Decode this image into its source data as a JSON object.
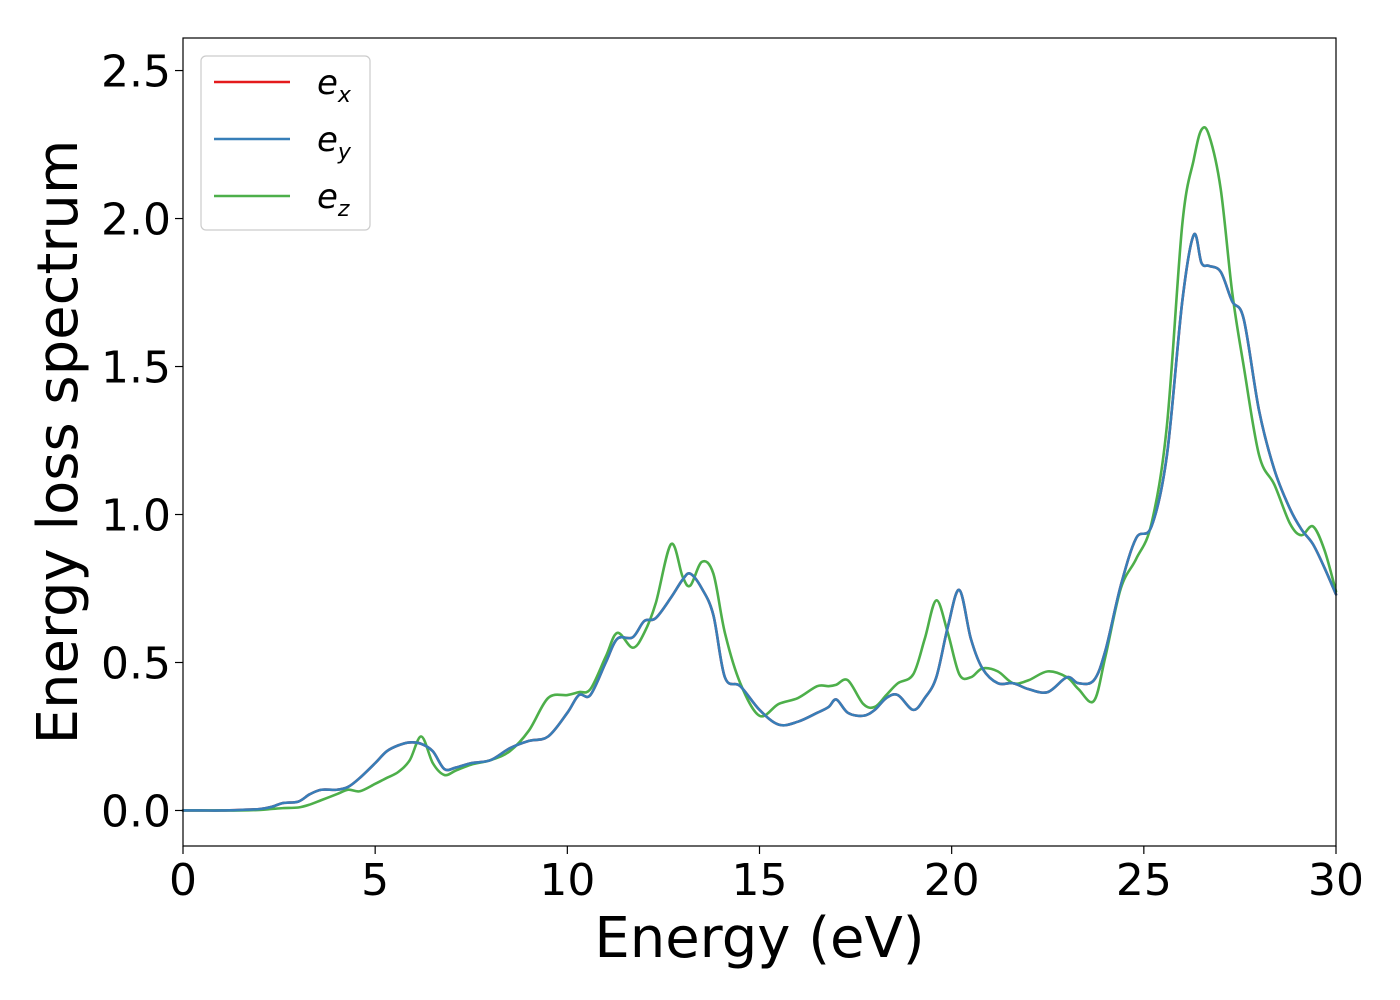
{
  "chart_data": {
    "type": "line",
    "xlabel": "Energy (eV)",
    "ylabel": "Energy loss spectrum",
    "xlim": [
      0,
      30
    ],
    "ylim": [
      -0.12,
      2.61
    ],
    "xticks": [
      0,
      5,
      10,
      15,
      20,
      25,
      30
    ],
    "yticks": [
      0.0,
      0.5,
      1.0,
      1.5,
      2.0,
      2.5
    ],
    "xtick_labels": [
      "0",
      "5",
      "10",
      "15",
      "20",
      "25",
      "30"
    ],
    "ytick_labels": [
      "0.0",
      "0.5",
      "1.0",
      "1.5",
      "2.0",
      "2.5"
    ],
    "grid": false,
    "legend_position": "top-left",
    "x": [
      0.0,
      0.5,
      1.0,
      1.5,
      2.0,
      2.3,
      2.6,
      3.0,
      3.3,
      3.6,
      4.0,
      4.3,
      4.6,
      5.0,
      5.3,
      5.6,
      5.9,
      6.2,
      6.5,
      6.8,
      7.1,
      7.5,
      8.0,
      8.5,
      9.0,
      9.5,
      10.0,
      10.3,
      10.6,
      11.0,
      11.3,
      11.7,
      12.0,
      12.3,
      12.7,
      13.0,
      13.2,
      13.5,
      13.8,
      14.1,
      14.5,
      15.0,
      15.5,
      16.0,
      16.5,
      16.8,
      17.0,
      17.3,
      17.7,
      18.0,
      18.3,
      18.6,
      19.0,
      19.3,
      19.6,
      19.9,
      20.2,
      20.5,
      20.8,
      21.2,
      21.6,
      22.0,
      22.5,
      23.0,
      23.3,
      23.7,
      24.0,
      24.4,
      24.8,
      25.2,
      25.6,
      26.0,
      26.3,
      26.5,
      26.7,
      27.0,
      27.3,
      27.6,
      28.0,
      28.4,
      28.8,
      29.1,
      29.4,
      29.7,
      30.0
    ],
    "series": [
      {
        "name": "e_x",
        "color": "#e41a1c",
        "values": [
          0.0,
          0.0,
          0.0,
          0.002,
          0.005,
          0.012,
          0.025,
          0.03,
          0.055,
          0.07,
          0.07,
          0.08,
          0.11,
          0.16,
          0.2,
          0.22,
          0.23,
          0.225,
          0.2,
          0.14,
          0.145,
          0.16,
          0.17,
          0.21,
          0.235,
          0.25,
          0.33,
          0.39,
          0.39,
          0.5,
          0.58,
          0.585,
          0.64,
          0.65,
          0.72,
          0.78,
          0.8,
          0.75,
          0.66,
          0.45,
          0.42,
          0.34,
          0.29,
          0.3,
          0.33,
          0.35,
          0.375,
          0.33,
          0.32,
          0.34,
          0.38,
          0.39,
          0.34,
          0.38,
          0.45,
          0.62,
          0.745,
          0.58,
          0.48,
          0.43,
          0.43,
          0.41,
          0.4,
          0.45,
          0.43,
          0.44,
          0.54,
          0.76,
          0.92,
          0.96,
          1.2,
          1.72,
          1.945,
          1.85,
          1.84,
          1.82,
          1.72,
          1.66,
          1.35,
          1.15,
          1.02,
          0.95,
          0.9,
          0.82,
          0.73
        ]
      },
      {
        "name": "e_y",
        "color": "#377eb8",
        "values": [
          0.0,
          0.0,
          0.0,
          0.002,
          0.005,
          0.012,
          0.025,
          0.03,
          0.055,
          0.07,
          0.07,
          0.08,
          0.11,
          0.16,
          0.2,
          0.22,
          0.23,
          0.225,
          0.2,
          0.14,
          0.145,
          0.16,
          0.17,
          0.21,
          0.235,
          0.25,
          0.33,
          0.39,
          0.39,
          0.5,
          0.58,
          0.585,
          0.64,
          0.65,
          0.72,
          0.78,
          0.8,
          0.75,
          0.66,
          0.45,
          0.42,
          0.34,
          0.29,
          0.3,
          0.33,
          0.35,
          0.375,
          0.33,
          0.32,
          0.34,
          0.38,
          0.39,
          0.34,
          0.38,
          0.45,
          0.62,
          0.745,
          0.58,
          0.48,
          0.43,
          0.43,
          0.41,
          0.4,
          0.45,
          0.43,
          0.44,
          0.54,
          0.76,
          0.92,
          0.96,
          1.2,
          1.72,
          1.945,
          1.85,
          1.84,
          1.82,
          1.72,
          1.66,
          1.35,
          1.15,
          1.02,
          0.95,
          0.9,
          0.82,
          0.73
        ]
      },
      {
        "name": "e_z",
        "color": "#4daf4a",
        "values": [
          0.0,
          0.0,
          0.0,
          0.0,
          0.002,
          0.005,
          0.008,
          0.01,
          0.02,
          0.035,
          0.055,
          0.07,
          0.065,
          0.09,
          0.11,
          0.13,
          0.17,
          0.25,
          0.16,
          0.12,
          0.135,
          0.155,
          0.17,
          0.2,
          0.27,
          0.38,
          0.39,
          0.4,
          0.41,
          0.52,
          0.6,
          0.55,
          0.6,
          0.7,
          0.9,
          0.79,
          0.76,
          0.84,
          0.8,
          0.6,
          0.43,
          0.32,
          0.36,
          0.38,
          0.42,
          0.42,
          0.425,
          0.44,
          0.36,
          0.35,
          0.39,
          0.43,
          0.46,
          0.58,
          0.71,
          0.6,
          0.46,
          0.45,
          0.48,
          0.47,
          0.43,
          0.44,
          0.47,
          0.45,
          0.41,
          0.37,
          0.52,
          0.75,
          0.85,
          0.97,
          1.3,
          1.98,
          2.2,
          2.3,
          2.28,
          2.1,
          1.75,
          1.5,
          1.2,
          1.1,
          0.97,
          0.93,
          0.96,
          0.88,
          0.74
        ]
      }
    ]
  }
}
